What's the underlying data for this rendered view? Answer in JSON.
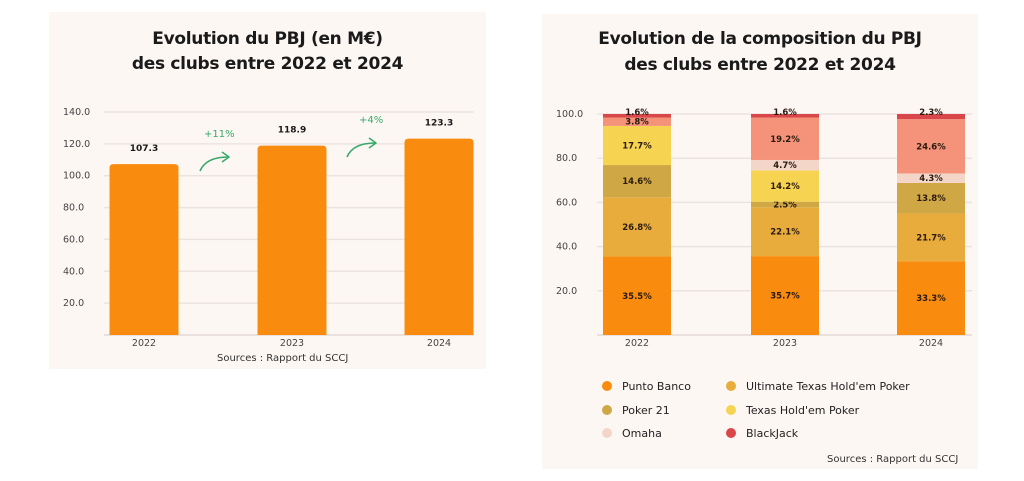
{
  "chart_data": [
    {
      "type": "bar",
      "title": "Evolution du PBJ (en M€)",
      "subtitle": "des clubs entre 2022 et 2024",
      "categories": [
        "2022",
        "2023",
        "2024"
      ],
      "values": [
        107.3,
        118.9,
        123.3
      ],
      "value_labels": [
        "107.3",
        "118.9",
        "123.3"
      ],
      "yticks": [
        "20.0",
        "40.0",
        "60.0",
        "80.0",
        "100.0",
        "120.0",
        "140.0"
      ],
      "ytick_values": [
        20,
        40,
        60,
        80,
        100,
        120,
        140
      ],
      "ylim": [
        0,
        140
      ],
      "grid": true,
      "bar_color": "#f98c0e",
      "annotations": [
        {
          "label": "+11%",
          "between": [
            "2022",
            "2023"
          ],
          "color": "#3aaa6a"
        },
        {
          "label": "+4%",
          "between": [
            "2023",
            "2024"
          ],
          "color": "#3aaa6a"
        }
      ],
      "source": "Sources : Rapport du SCCJ",
      "xlabel": "",
      "ylabel": ""
    },
    {
      "type": "bar",
      "stacked": true,
      "title": "Evolution de la composition du PBJ",
      "subtitle": "des clubs entre 2022 et 2024",
      "categories": [
        "2022",
        "2023",
        "2024"
      ],
      "yticks": [
        "20.0",
        "40.0",
        "60.0",
        "80.0",
        "100.0"
      ],
      "ytick_values": [
        20,
        40,
        60,
        80,
        100
      ],
      "ylim": [
        0,
        100
      ],
      "grid": true,
      "series": [
        {
          "name": "Punto Banco",
          "color": "#f98c0e",
          "values": [
            35.5,
            35.7,
            33.3
          ],
          "labels": [
            "35.5%",
            "35.7%",
            "33.3%"
          ]
        },
        {
          "name": "Ultimate Texas Hold'em Poker",
          "color": "#e8ac3c",
          "values": [
            26.8,
            22.1,
            21.7
          ],
          "labels": [
            "26.8%",
            "22.1%",
            "21.7%"
          ]
        },
        {
          "name": "Poker 21",
          "color": "#cfa744",
          "values": [
            14.6,
            2.5,
            13.8
          ],
          "labels": [
            "14.6%",
            "2.5%",
            "13.8%"
          ]
        },
        {
          "name": "Texas Hold'em Poker",
          "color": "#f7d352",
          "values": [
            17.7,
            14.2,
            0
          ],
          "labels": [
            "17.7%",
            "14.2%",
            ""
          ]
        },
        {
          "name": "Omaha",
          "color": "#f3d6c8",
          "values": [
            0,
            4.7,
            4.3
          ],
          "labels": [
            "",
            "4.7%",
            "4.3%"
          ]
        },
        {
          "name": "BlackJack",
          "color": "#d9474a",
          "values": [
            1.6,
            1.6,
            2.3
          ],
          "labels": [
            "1.6%",
            "1.6%",
            "2.3%"
          ]
        }
      ],
      "extra_series_note_values": {
        "name": "Pink segment",
        "color": "#f5927a",
        "values": [
          3.8,
          19.2,
          24.6
        ],
        "labels": [
          "3.8%",
          "19.2%",
          "24.6%"
        ]
      },
      "legend": {
        "placement": "bottom",
        "items": [
          {
            "name": "Punto Banco",
            "color": "#f98c0e"
          },
          {
            "name": "Ultimate Texas Hold'em Poker",
            "color": "#e8ac3c"
          },
          {
            "name": "Poker 21",
            "color": "#cfa744"
          },
          {
            "name": "Texas Hold'em Poker",
            "color": "#f7d352"
          },
          {
            "name": "Omaha",
            "color": "#f3d6c8"
          },
          {
            "name": "BlackJack",
            "color": "#d9474a"
          }
        ]
      },
      "source": "Sources : Rapport du SCCJ",
      "xlabel": "",
      "ylabel": ""
    }
  ]
}
